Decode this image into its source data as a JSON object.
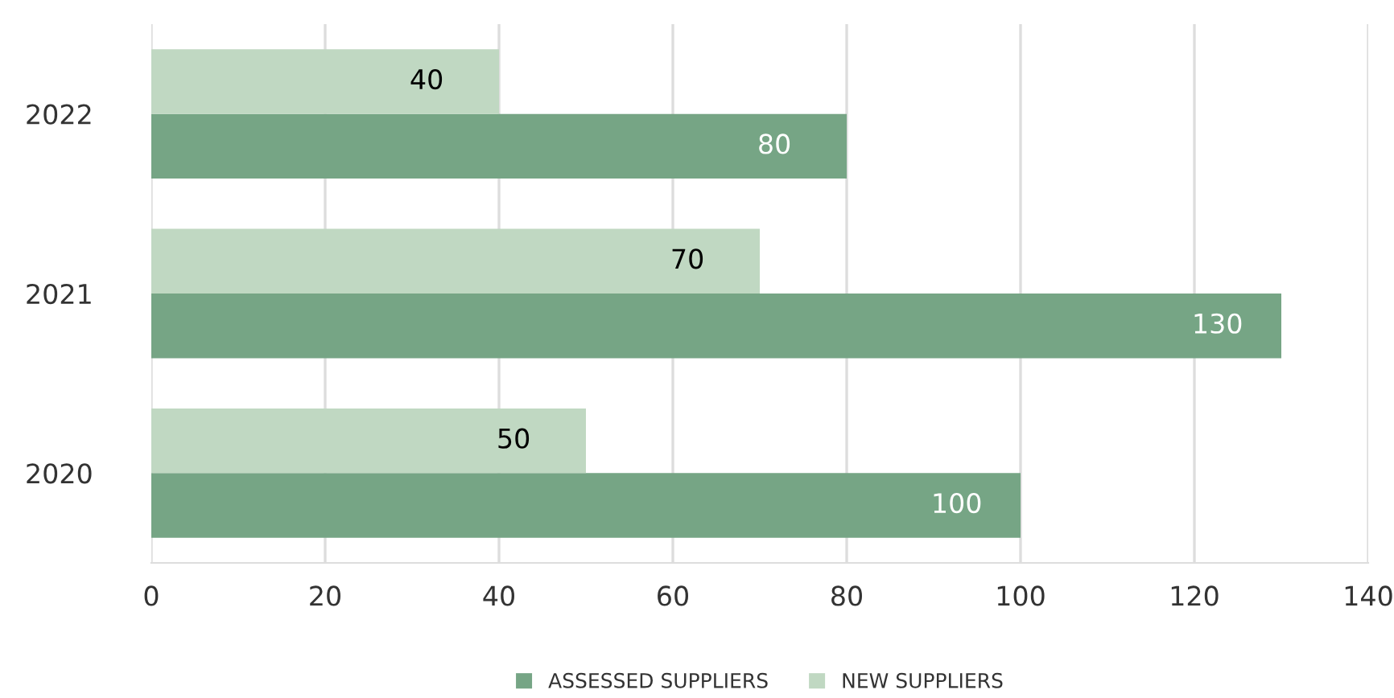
{
  "chart_data": {
    "type": "bar",
    "orientation": "horizontal",
    "categories": [
      "2022",
      "2021",
      "2020"
    ],
    "series": [
      {
        "name": "ASSESSED SUPPLIERS",
        "color": "#76a585",
        "values": [
          80,
          130,
          100
        ]
      },
      {
        "name": "NEW SUPPLIERS",
        "color": "#c0d8c2",
        "values": [
          40,
          70,
          50
        ]
      }
    ],
    "xlim": [
      0,
      140
    ],
    "xticks": [
      0,
      20,
      40,
      60,
      80,
      100,
      120,
      140
    ],
    "grid": "x",
    "legend": "bottom",
    "data_labels": true
  }
}
